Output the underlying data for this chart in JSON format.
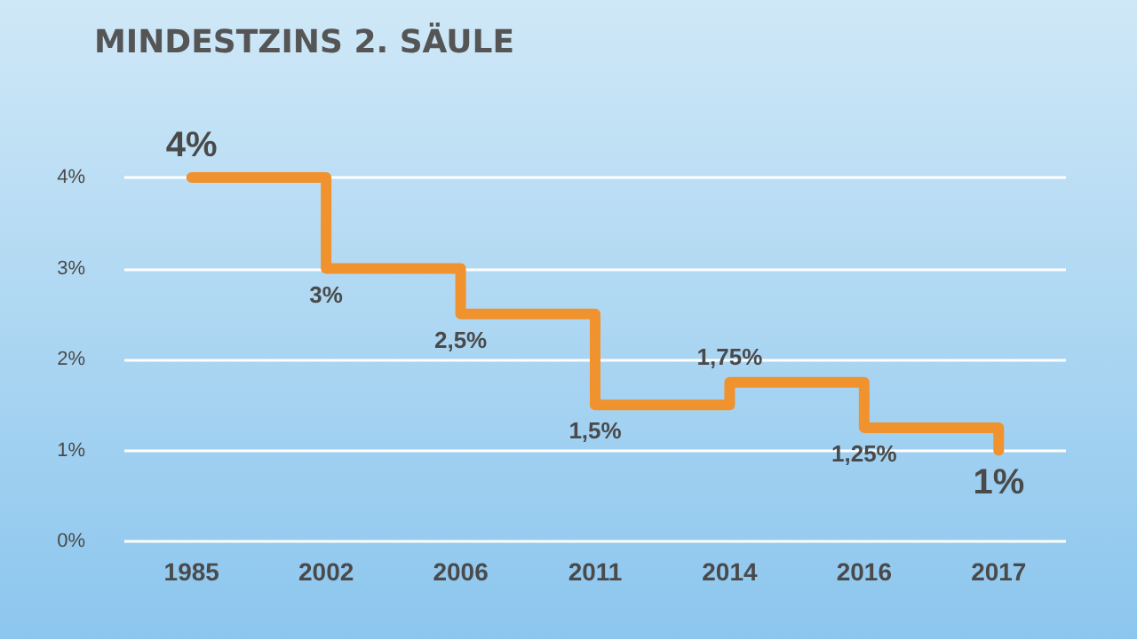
{
  "chart_data": {
    "type": "step",
    "title": "MINDESTZINS 2. SÄULE",
    "categories": [
      "1985",
      "2002",
      "2006",
      "2011",
      "2014",
      "2016",
      "2017"
    ],
    "values": [
      4,
      3,
      2.5,
      1.5,
      1.75,
      1.25,
      1
    ],
    "value_labels": [
      "4%",
      "3%",
      "2,5%",
      "1,5%",
      "1,75%",
      "1,25%",
      "1%"
    ],
    "color": "#f0922e",
    "ylim": [
      0,
      4
    ],
    "yticks": [
      {
        "value": 0,
        "label": "0%"
      },
      {
        "value": 1,
        "label": "1%"
      },
      {
        "value": 2,
        "label": "2%"
      },
      {
        "value": 3,
        "label": "3%"
      },
      {
        "value": 4,
        "label": "4%"
      }
    ],
    "grid": "y",
    "marker": "none",
    "line_style": "solid"
  }
}
